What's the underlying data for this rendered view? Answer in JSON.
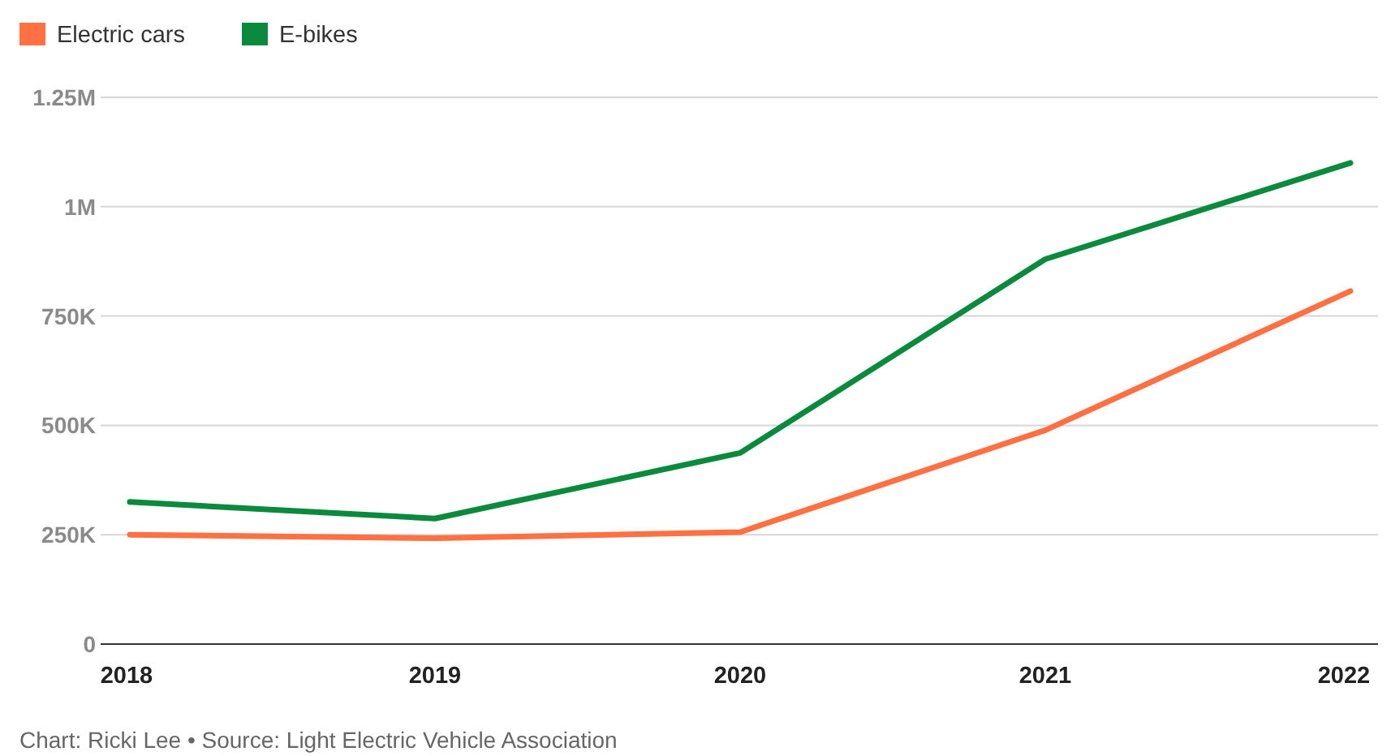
{
  "chart_data": {
    "type": "line",
    "categories": [
      "2018",
      "2019",
      "2020",
      "2021",
      "2022"
    ],
    "series": [
      {
        "name": "Electric cars",
        "color": "#ff7043",
        "values": [
          250000,
          242000,
          256000,
          489000,
          807000
        ]
      },
      {
        "name": "E-bikes",
        "color": "#0b8a3e",
        "values": [
          325000,
          287000,
          437000,
          880000,
          1100000
        ]
      }
    ],
    "ylim": [
      0,
      1250000
    ],
    "yticks": [
      {
        "value": 0,
        "label": "0"
      },
      {
        "value": 250000,
        "label": "250K"
      },
      {
        "value": 500000,
        "label": "500K"
      },
      {
        "value": 750000,
        "label": "750K"
      },
      {
        "value": 1000000,
        "label": "1M"
      },
      {
        "value": 1250000,
        "label": "1.25M"
      }
    ],
    "grid": "y",
    "legend": "top left",
    "marker": "none",
    "line_style": "solid",
    "annotations": [
      "Chart: Ricki Lee • Source: Light Electric Vehicle Association"
    ]
  }
}
